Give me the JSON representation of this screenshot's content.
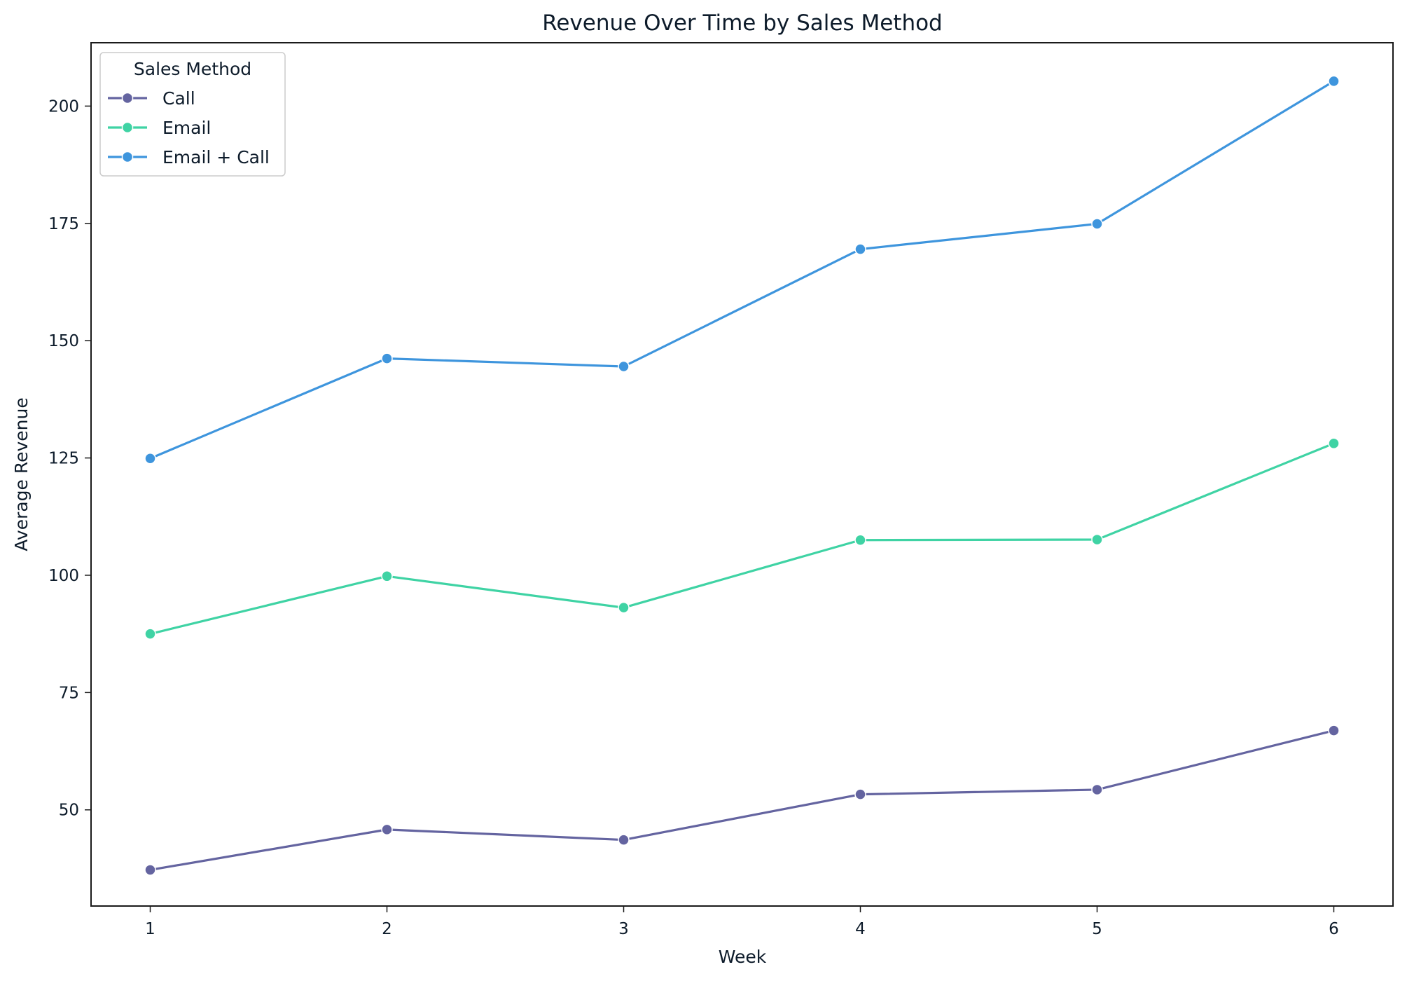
{
  "chart_data": {
    "type": "line",
    "title": "Revenue Over Time by Sales Method",
    "xlabel": "Week",
    "ylabel": "Average Revenue",
    "x": [
      1,
      2,
      3,
      4,
      5,
      6
    ],
    "xticks": [
      "1",
      "2",
      "3",
      "4",
      "5",
      "6"
    ],
    "yticks": [
      "50",
      "75",
      "100",
      "125",
      "150",
      "175",
      "200"
    ],
    "xlim": [
      0.75,
      6.25
    ],
    "ylim": [
      29.5,
      213.5
    ],
    "grid": false,
    "legend": {
      "title": "Sales Method",
      "position": "top-left"
    },
    "series": [
      {
        "name": "Call",
        "color": "#6464a0",
        "values": [
          37.2,
          45.8,
          43.6,
          53.3,
          54.3,
          66.9
        ]
      },
      {
        "name": "Email",
        "color": "#3fd3a4",
        "values": [
          87.5,
          99.8,
          93.1,
          107.5,
          107.6,
          128.1
        ]
      },
      {
        "name": "Email + Call",
        "color": "#3e95dd",
        "values": [
          124.9,
          146.2,
          144.5,
          169.5,
          174.9,
          205.3
        ]
      }
    ]
  }
}
